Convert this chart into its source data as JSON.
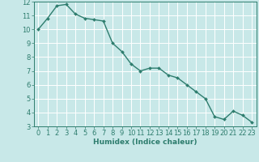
{
  "x": [
    0,
    1,
    2,
    3,
    4,
    5,
    6,
    7,
    8,
    9,
    10,
    11,
    12,
    13,
    14,
    15,
    16,
    17,
    18,
    19,
    20,
    21,
    22,
    23
  ],
  "y": [
    10.0,
    10.8,
    11.7,
    11.8,
    11.1,
    10.8,
    10.7,
    10.6,
    9.0,
    8.4,
    7.5,
    7.0,
    7.2,
    7.2,
    6.7,
    6.5,
    6.0,
    5.5,
    5.0,
    3.7,
    3.5,
    4.1,
    3.8,
    3.3
  ],
  "line_color": "#2e7d6e",
  "marker": "D",
  "marker_size": 2.0,
  "bg_color": "#c8e8e8",
  "grid_color": "#ffffff",
  "tick_color": "#2e7d6e",
  "xlabel": "Humidex (Indice chaleur)",
  "xlim": [
    -0.5,
    23.5
  ],
  "ylim": [
    3,
    12
  ],
  "yticks": [
    3,
    4,
    5,
    6,
    7,
    8,
    9,
    10,
    11,
    12
  ],
  "xticks": [
    0,
    1,
    2,
    3,
    4,
    5,
    6,
    7,
    8,
    9,
    10,
    11,
    12,
    13,
    14,
    15,
    16,
    17,
    18,
    19,
    20,
    21,
    22,
    23
  ],
  "xlabel_fontsize": 6.5,
  "tick_fontsize": 6.0,
  "line_width": 1.0
}
